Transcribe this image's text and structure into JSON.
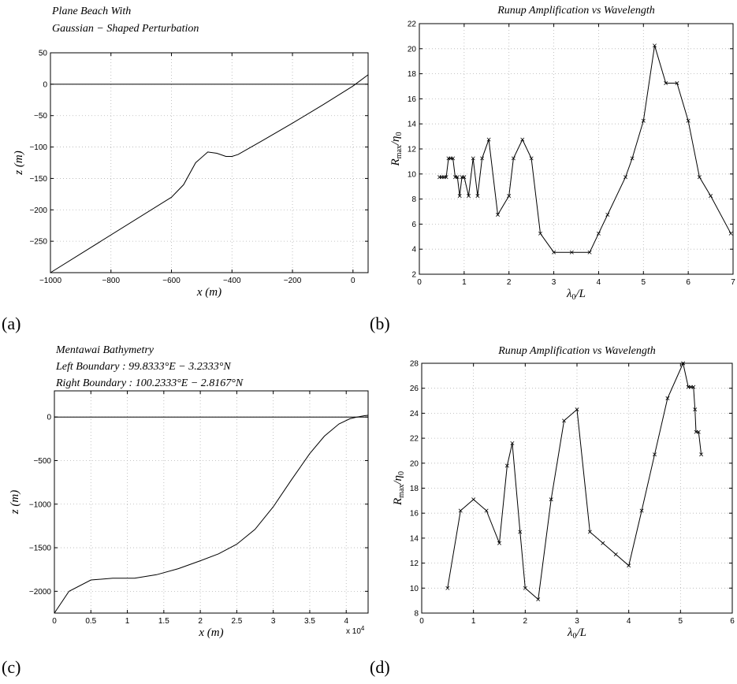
{
  "panels": [
    {
      "label": "(a)",
      "title_lines": [
        "Plane Beach With",
        "Gaussian − Shaped Perturbation"
      ],
      "xlabel": "x (m)",
      "ylabel": "z (m)",
      "x_ticks": [
        "−1000",
        "−800",
        "−600",
        "−400",
        "−200",
        "0"
      ],
      "y_ticks": [
        "50",
        "0",
        "−50",
        "−100",
        "−150",
        "−200",
        "−250"
      ]
    },
    {
      "label": "(b)",
      "title_lines": [
        "Runup Amplification vs Wavelength"
      ],
      "xlabel": "λ0/L",
      "ylabel": "Rmax/η0",
      "x_ticks": [
        "0",
        "1",
        "2",
        "3",
        "4",
        "5",
        "6",
        "7"
      ],
      "y_ticks": [
        "2",
        "4",
        "6",
        "8",
        "10",
        "12",
        "14",
        "16",
        "18",
        "20",
        "22"
      ]
    },
    {
      "label": "(c)",
      "title_lines": [
        "Mentawai Bathymetry",
        "Left Boundary :  99.8333°E    − 3.2333°N",
        "Right Boundary :  100.2333°E    − 2.8167°N"
      ],
      "xlabel": "x (m)",
      "ylabel": "z (m)",
      "x_ticks": [
        "0",
        "0.5",
        "1",
        "1.5",
        "2",
        "2.5",
        "3",
        "3.5",
        "4"
      ],
      "x_multiplier": "x 10^4",
      "y_ticks": [
        "0",
        "−500",
        "−1000",
        "−1500",
        "−2000"
      ]
    },
    {
      "label": "(d)",
      "title_lines": [
        "Runup Amplification vs Wavelength"
      ],
      "xlabel": "λ0/L",
      "ylabel": "Rmax/η0",
      "x_ticks": [
        "0",
        "1",
        "2",
        "3",
        "4",
        "5",
        "6"
      ],
      "y_ticks": [
        "8",
        "10",
        "12",
        "14",
        "16",
        "18",
        "20",
        "22",
        "24",
        "26",
        "28"
      ]
    }
  ],
  "chart_data": [
    {
      "type": "line",
      "xlim": [
        -1000,
        50
      ],
      "ylim": [
        -300,
        50
      ],
      "grid": true,
      "series": [
        {
          "x": [
            -1000,
            -600,
            -560,
            -520,
            -480,
            -450,
            -420,
            -400,
            -380,
            -300,
            -200,
            -100,
            0,
            50
          ],
          "values": [
            -300,
            -180,
            -160,
            -125,
            -108,
            -110,
            -115,
            -115,
            -112,
            -90,
            -62,
            -33,
            -3,
            15
          ]
        },
        {
          "x": [
            -1000,
            50
          ],
          "values": [
            0,
            0
          ]
        }
      ]
    },
    {
      "type": "line",
      "xlim": [
        0,
        7
      ],
      "ylim": [
        2,
        22
      ],
      "grid": true,
      "series": [
        {
          "x": [
            0.45,
            0.5,
            0.55,
            0.6,
            0.65,
            0.7,
            0.75,
            0.8,
            0.85,
            0.9,
            0.95,
            1.0,
            1.1,
            1.2,
            1.3,
            1.4,
            1.55,
            1.75,
            2.0,
            2.1,
            2.3,
            2.5,
            2.7,
            3.0,
            3.4,
            3.8,
            4.0,
            4.2,
            4.6,
            4.75,
            5.0,
            5.25,
            5.5,
            5.75,
            6.0,
            6.25,
            6.5,
            6.95
          ],
          "values": [
            9.75,
            9.75,
            9.75,
            9.75,
            11.25,
            11.25,
            11.25,
            9.75,
            9.75,
            8.25,
            9.75,
            9.75,
            8.25,
            11.25,
            8.25,
            11.25,
            12.75,
            6.75,
            8.25,
            11.25,
            12.75,
            11.25,
            5.25,
            3.75,
            3.75,
            3.75,
            5.25,
            6.75,
            9.75,
            11.25,
            14.25,
            20.25,
            17.25,
            17.25,
            14.25,
            9.75,
            8.25,
            5.25
          ]
        }
      ]
    },
    {
      "type": "line",
      "xlim": [
        0,
        43000
      ],
      "ylim": [
        -2250,
        300
      ],
      "grid": true,
      "series": [
        {
          "x": [
            0,
            2000,
            5000,
            8000,
            11000,
            14000,
            17000,
            20000,
            22500,
            25000,
            27500,
            30000,
            32500,
            35000,
            37000,
            39000,
            40500,
            41500,
            42500,
            43000
          ],
          "values": [
            -2250,
            -2000,
            -1870,
            -1850,
            -1850,
            -1810,
            -1740,
            -1650,
            -1570,
            -1460,
            -1290,
            -1030,
            -720,
            -420,
            -220,
            -80,
            -20,
            0,
            15,
            20
          ]
        },
        {
          "x": [
            0,
            43000
          ],
          "values": [
            0,
            0
          ]
        }
      ]
    },
    {
      "type": "line",
      "xlim": [
        0,
        6
      ],
      "ylim": [
        8,
        28
      ],
      "grid": true,
      "series": [
        {
          "x": [
            0.5,
            0.75,
            1.0,
            1.25,
            1.5,
            1.65,
            1.75,
            1.9,
            2.0,
            2.25,
            2.5,
            2.75,
            3.0,
            3.25,
            3.5,
            3.75,
            4.0,
            4.25,
            4.5,
            4.75,
            5.05,
            5.15,
            5.2,
            5.25,
            5.28,
            5.3,
            5.35,
            5.4
          ],
          "values": [
            10.0,
            16.2,
            17.1,
            16.2,
            13.6,
            19.8,
            21.6,
            14.5,
            10.0,
            9.1,
            17.1,
            23.4,
            24.3,
            14.5,
            13.6,
            12.7,
            11.8,
            16.2,
            20.7,
            25.2,
            28.0,
            26.1,
            26.1,
            26.1,
            24.3,
            22.5,
            22.5,
            20.7
          ]
        }
      ]
    }
  ]
}
